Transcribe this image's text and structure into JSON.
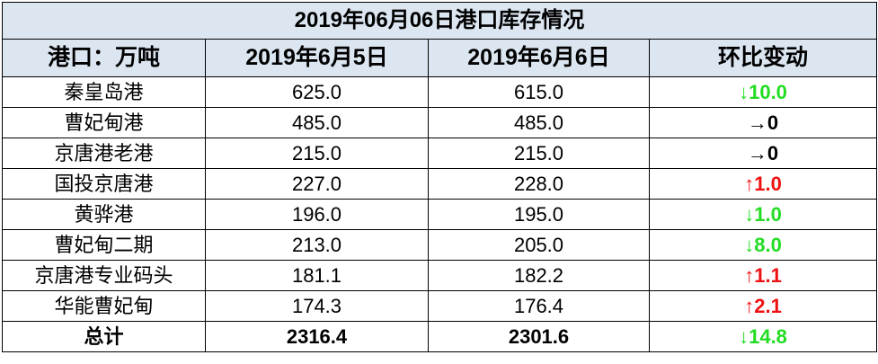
{
  "table": {
    "title": "2019年06月06日港口库存情况",
    "header": [
      "港口：万吨",
      "2019年6月5日",
      "2019年6月6日",
      "环比变动"
    ],
    "rows": [
      [
        "秦皇岛港",
        "625.0",
        "615.0",
        "↓10.0"
      ],
      [
        "曹妃甸港",
        "485.0",
        "485.0",
        "→0"
      ],
      [
        "京唐港老港",
        "215.0",
        "215.0",
        "→0"
      ],
      [
        "国投京唐港",
        "227.0",
        "228.0",
        "↑1.0"
      ],
      [
        "黄骅港",
        "196.0",
        "195.0",
        "↓1.0"
      ],
      [
        "曹妃甸二期",
        "213.0",
        "205.0",
        "↓8.0"
      ],
      [
        "京唐港专业码头",
        "181.1",
        "182.2",
        "↑1.1"
      ],
      [
        "华能曹妃甸",
        "174.3",
        "176.4",
        "↑2.1"
      ]
    ],
    "change_colors": [
      "#22dd22",
      "#000000",
      "#000000",
      "#ee1111",
      "#22dd22",
      "#22dd22",
      "#ee1111",
      "#ee1111"
    ],
    "total": [
      "总计",
      "2316.4",
      "2301.6",
      "↓14.8"
    ],
    "total_change_color": "#22dd22"
  }
}
